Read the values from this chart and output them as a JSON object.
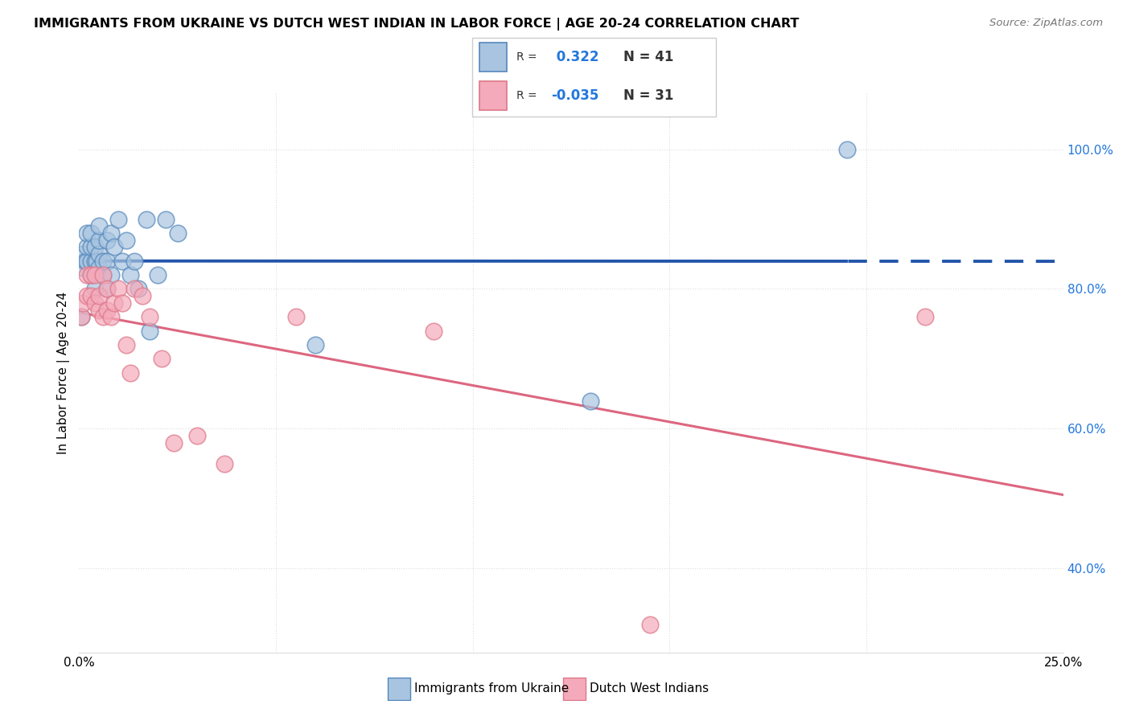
{
  "title": "IMMIGRANTS FROM UKRAINE VS DUTCH WEST INDIAN IN LABOR FORCE | AGE 20-24 CORRELATION CHART",
  "source": "Source: ZipAtlas.com",
  "ylabel": "In Labor Force | Age 20-24",
  "yticks": [
    0.4,
    0.6,
    0.8,
    1.0
  ],
  "ytick_labels": [
    "40.0%",
    "60.0%",
    "80.0%",
    "100.0%"
  ],
  "legend_label1": "Immigrants from Ukraine",
  "legend_label2": "Dutch West Indians",
  "R1": 0.322,
  "N1": 41,
  "R2": -0.035,
  "N2": 31,
  "color_blue": "#A8C4E0",
  "color_pink": "#F4AABB",
  "color_blue_edge": "#5588BB",
  "color_pink_edge": "#DD7788",
  "color_blue_line": "#2255AA",
  "color_pink_line": "#DD6680",
  "color_grid": "#DDDDDD",
  "background": "#FFFFFF",
  "xlim": [
    0.0,
    0.25
  ],
  "ylim": [
    0.28,
    1.08
  ],
  "ukraine_x": [
    0.0005,
    0.001,
    0.001,
    0.0015,
    0.002,
    0.002,
    0.002,
    0.003,
    0.003,
    0.003,
    0.003,
    0.004,
    0.004,
    0.004,
    0.0045,
    0.005,
    0.005,
    0.005,
    0.005,
    0.006,
    0.006,
    0.007,
    0.007,
    0.007,
    0.008,
    0.008,
    0.009,
    0.01,
    0.011,
    0.012,
    0.013,
    0.014,
    0.015,
    0.017,
    0.018,
    0.02,
    0.022,
    0.025,
    0.06,
    0.13,
    0.195
  ],
  "ukraine_y": [
    0.76,
    0.83,
    0.85,
    0.84,
    0.84,
    0.86,
    0.88,
    0.82,
    0.84,
    0.86,
    0.88,
    0.8,
    0.84,
    0.86,
    0.84,
    0.83,
    0.85,
    0.87,
    0.89,
    0.82,
    0.84,
    0.8,
    0.84,
    0.87,
    0.82,
    0.88,
    0.86,
    0.9,
    0.84,
    0.87,
    0.82,
    0.84,
    0.8,
    0.9,
    0.74,
    0.82,
    0.9,
    0.88,
    0.72,
    0.64,
    1.0
  ],
  "dutch_x": [
    0.0005,
    0.001,
    0.002,
    0.002,
    0.003,
    0.003,
    0.004,
    0.004,
    0.005,
    0.005,
    0.006,
    0.006,
    0.007,
    0.007,
    0.008,
    0.009,
    0.01,
    0.011,
    0.012,
    0.013,
    0.014,
    0.016,
    0.018,
    0.021,
    0.024,
    0.03,
    0.037,
    0.055,
    0.09,
    0.145,
    0.215
  ],
  "dutch_y": [
    0.76,
    0.78,
    0.79,
    0.82,
    0.79,
    0.82,
    0.78,
    0.82,
    0.77,
    0.79,
    0.76,
    0.82,
    0.77,
    0.8,
    0.76,
    0.78,
    0.8,
    0.78,
    0.72,
    0.68,
    0.8,
    0.79,
    0.76,
    0.7,
    0.58,
    0.59,
    0.55,
    0.76,
    0.74,
    0.32,
    0.76
  ]
}
